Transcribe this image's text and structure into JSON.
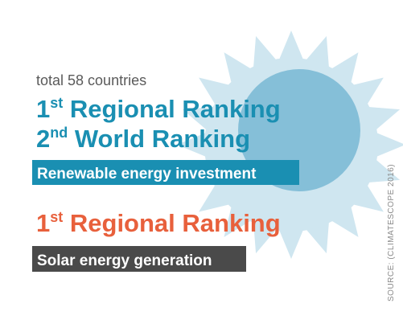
{
  "subtitle": "total 58 countries",
  "renewable": {
    "rankings": [
      {
        "number": "1",
        "suffix": "st",
        "label": " Regional Ranking"
      },
      {
        "number": "2",
        "suffix": "nd",
        "label": " World Ranking"
      }
    ],
    "tag": "Renewable energy investment"
  },
  "solar": {
    "rankings": [
      {
        "number": "1",
        "suffix": "st",
        "label": " Regional Ranking"
      }
    ],
    "tag": "Solar energy generation"
  },
  "source": "SOURCE: (CLIMATESCOPE 2016)"
}
